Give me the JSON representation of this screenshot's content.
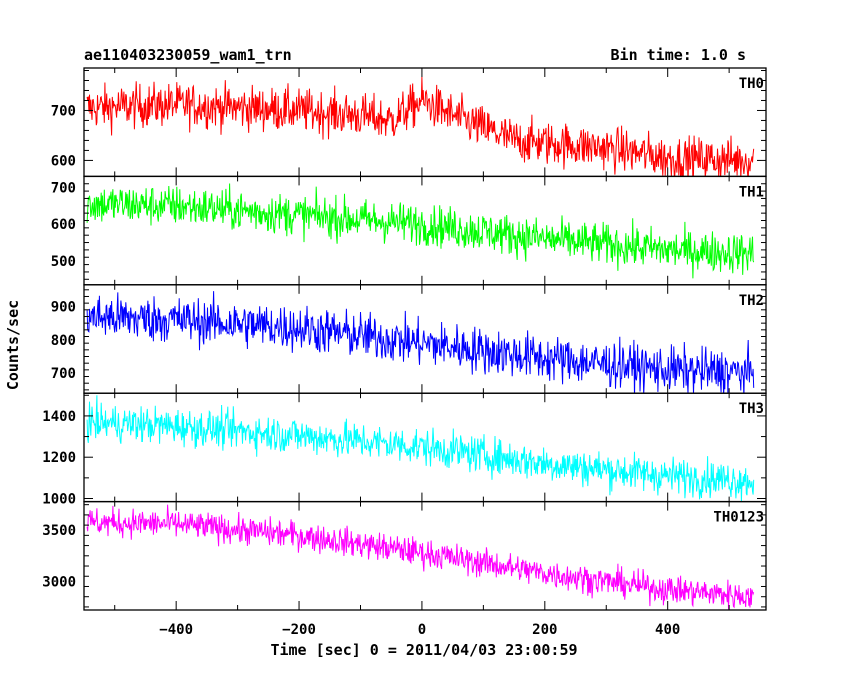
{
  "header": {
    "title": "ae110403230059_wam1_trn",
    "bin_time": "Bin time: 1.0 s"
  },
  "axes": {
    "xlabel": "Time [sec] 0 = 2011/04/03 23:00:59",
    "ylabel": "Counts/sec",
    "xlim": [
      -550,
      560
    ],
    "xticks": [
      -400,
      -200,
      0,
      200,
      400
    ],
    "xtick_labels": [
      "−400",
      "−200",
      "0",
      "200",
      "400"
    ]
  },
  "chart_data": [
    {
      "type": "line",
      "name": "TH0",
      "color": "#ff0000",
      "ylim": [
        568,
        785
      ],
      "yticks": [
        600,
        700
      ],
      "ytick_labels": [
        "600",
        "700"
      ],
      "x_range": [
        -545,
        540
      ],
      "trend_x": [
        -545,
        -400,
        -200,
        -100,
        -50,
        0,
        50,
        150,
        300,
        400,
        540
      ],
      "trend_y": [
        705,
        712,
        700,
        690,
        680,
        720,
        690,
        640,
        625,
        605,
        600
      ],
      "noise": 22
    },
    {
      "type": "line",
      "name": "TH1",
      "color": "#00ff00",
      "ylim": [
        435,
        730
      ],
      "yticks": [
        500,
        600,
        700
      ],
      "ytick_labels": [
        "500",
        "600",
        "700"
      ],
      "x_range": [
        -545,
        540
      ],
      "trend_x": [
        -545,
        -400,
        -200,
        0,
        200,
        400,
        540
      ],
      "trend_y": [
        655,
        650,
        625,
        600,
        560,
        530,
        520
      ],
      "noise": 28
    },
    {
      "type": "line",
      "name": "TH2",
      "color": "#0000ff",
      "ylim": [
        640,
        965
      ],
      "yticks": [
        700,
        800,
        900
      ],
      "ytick_labels": [
        "700",
        "800",
        "900"
      ],
      "x_range": [
        -545,
        540
      ],
      "trend_x": [
        -545,
        -400,
        -200,
        0,
        200,
        400,
        540
      ],
      "trend_y": [
        870,
        860,
        835,
        790,
        745,
        710,
        700
      ],
      "noise": 35
    },
    {
      "type": "line",
      "name": "TH3",
      "color": "#00ffff",
      "ylim": [
        985,
        1510
      ],
      "yticks": [
        1000,
        1200,
        1400
      ],
      "ytick_labels": [
        "1000",
        "1200",
        "1400"
      ],
      "x_range": [
        -545,
        540
      ],
      "trend_x": [
        -545,
        -400,
        -200,
        0,
        200,
        400,
        540
      ],
      "trend_y": [
        1370,
        1350,
        1305,
        1250,
        1170,
        1110,
        1085
      ],
      "noise": 45
    },
    {
      "type": "line",
      "name": "TH0123",
      "color": "#ff00ff",
      "ylim": [
        2720,
        3780
      ],
      "yticks": [
        3000,
        3500
      ],
      "ytick_labels": [
        "3000",
        "3500"
      ],
      "x_range": [
        -545,
        540
      ],
      "trend_x": [
        -545,
        -400,
        -200,
        0,
        200,
        400,
        540
      ],
      "trend_y": [
        3580,
        3560,
        3450,
        3280,
        3080,
        2920,
        2850
      ],
      "noise": 70
    }
  ]
}
